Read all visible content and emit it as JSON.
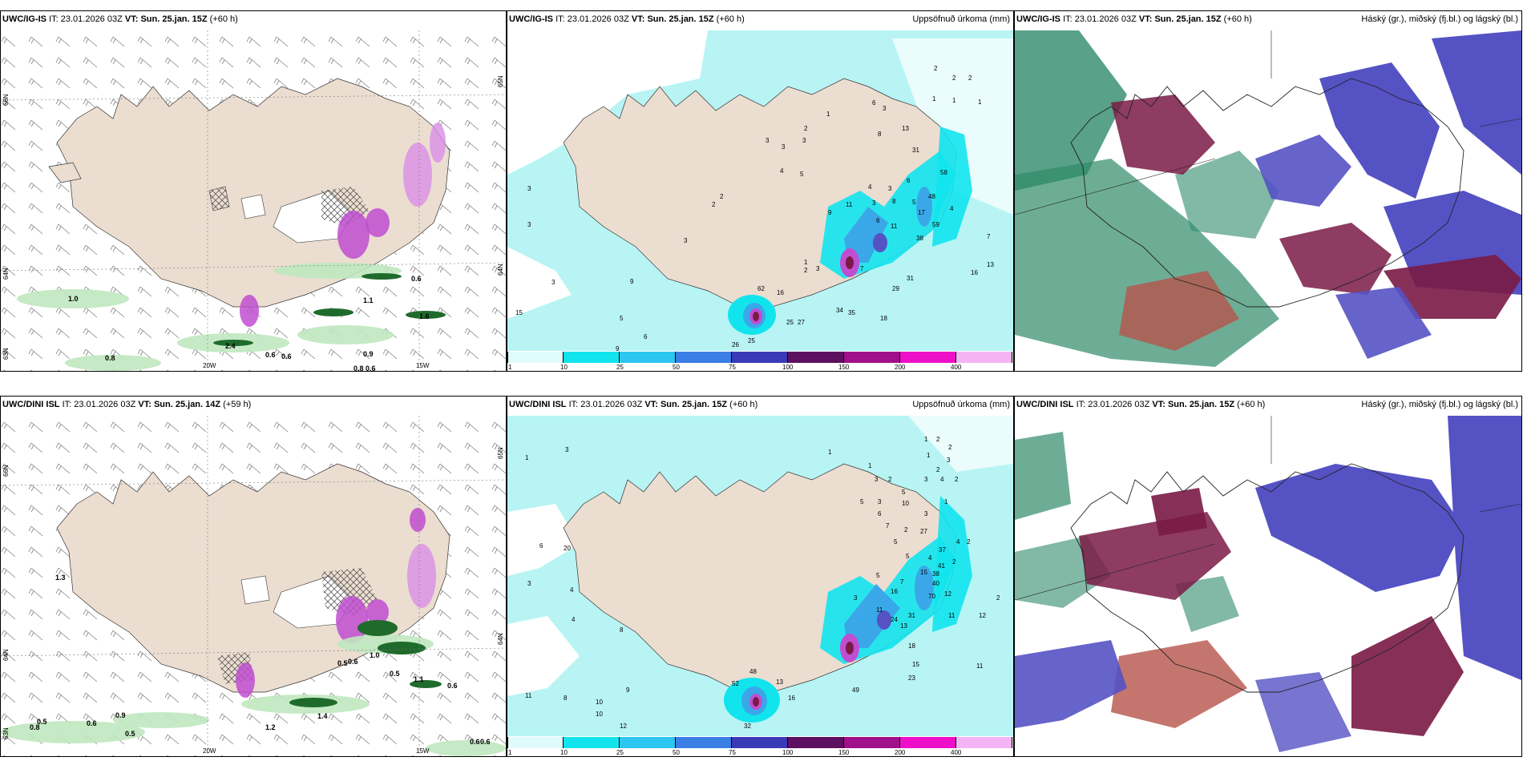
{
  "colors": {
    "land": "#ebddd0",
    "cyan_light": "#b8f4f4",
    "cyan": "#12e4ee",
    "blue_mid": "#3aa8e8",
    "magenta": "#c04ed0",
    "green_light": "#bfe8bf",
    "green_dark": "#1f6b2c",
    "maroon": "#7a1a45",
    "violet": "#5552c4",
    "teal": "#2f8a6a"
  },
  "panels": [
    {
      "id": "top-left",
      "model": "UWC/IG-IS",
      "it_label": "IT:",
      "it_value": "23.01.2026 03Z",
      "vt_label": "VT:",
      "vt_value": "Sun. 25.jan. 15Z",
      "lead": "(+60 h)",
      "right_title": "",
      "numbers": [
        "1.0",
        "2.4",
        "0.6",
        "0.6",
        "0.8",
        "0.9",
        "0.8",
        "0.6",
        "1.1",
        "1.6",
        "0.6"
      ],
      "axis_bottom": [
        "20W",
        "15W"
      ],
      "axis_left": [
        "66N",
        "64N",
        "63N"
      ],
      "axis_right": [
        "65N",
        "64N"
      ]
    },
    {
      "id": "top-mid",
      "model": "UWC/IG-IS",
      "it_label": "IT:",
      "it_value": "23.01.2026 03Z",
      "vt_label": "VT:",
      "vt_value": "Sun. 25.jan. 15Z",
      "lead": "(+60 h)",
      "right_title": "Uppsöfnuð úrkoma (mm)",
      "numbers": [
        "2",
        "2",
        "2",
        "1",
        "1",
        "1",
        "6",
        "3",
        "8",
        "13",
        "1",
        "2",
        "3",
        "3",
        "3",
        "31",
        "4",
        "5",
        "6",
        "3",
        "4",
        "58",
        "11",
        "3",
        "8",
        "5",
        "48",
        "4",
        "17",
        "59",
        "11",
        "38",
        "9",
        "6",
        "7",
        "16",
        "13",
        "2",
        "3",
        "2",
        "1",
        "2",
        "3",
        "62",
        "16",
        "9",
        "15",
        "5",
        "25",
        "27",
        "34",
        "35",
        "18",
        "29",
        "31",
        "26",
        "25",
        "7",
        "6",
        "9",
        "3",
        "3",
        "3"
      ],
      "colorbar_ticks": [
        "1",
        "10",
        "25",
        "50",
        "75",
        "100",
        "150",
        "200",
        "400"
      ]
    },
    {
      "id": "top-right",
      "model": "UWC/IG-IS",
      "it_label": "IT:",
      "it_value": "23.01.2026 03Z",
      "vt_label": "VT:",
      "vt_value": "Sun. 25.jan. 15Z",
      "lead": "(+60 h)",
      "right_title": "Háský (gr.), miðský (fj.bl.) og lágský (bl.)"
    },
    {
      "id": "bottom-left",
      "model": "UWC/DINI ISL",
      "it_label": "IT:",
      "it_value": "23.01.2026 03Z",
      "vt_label": "VT:",
      "vt_value": "Sun. 25.jan. 14Z",
      "lead": "(+59 h)",
      "right_title": "",
      "numbers": [
        "1.3",
        "0.5",
        "0.8",
        "0.9",
        "0.6",
        "0.5",
        "1.2",
        "1.4",
        "0.5",
        "1.0",
        "0.6",
        "0.5",
        "1.1",
        "0.6",
        "0.6",
        "0.6"
      ],
      "axis_bottom": [
        "20W",
        "15W"
      ],
      "axis_left": [
        "66N",
        "64N",
        "63N"
      ],
      "axis_right": [
        "65N",
        "64N"
      ]
    },
    {
      "id": "bottom-mid",
      "model": "UWC/DINI ISL",
      "it_label": "IT:",
      "it_value": "23.01.2026 03Z",
      "vt_label": "VT:",
      "vt_value": "Sun. 25.jan. 15Z",
      "lead": "(+60 h)",
      "right_title": "Uppsöfnuð úrkoma (mm)",
      "numbers": [
        "1",
        "2",
        "2",
        "1",
        "3",
        "2",
        "1",
        "3",
        "2",
        "3",
        "4",
        "2",
        "1",
        "5",
        "5",
        "1",
        "3",
        "6",
        "7",
        "3",
        "10",
        "27",
        "2",
        "5",
        "37",
        "4",
        "2",
        "5",
        "4",
        "2",
        "41",
        "7",
        "5",
        "15",
        "38",
        "40",
        "16",
        "70",
        "12",
        "3",
        "11",
        "2",
        "13",
        "24",
        "31",
        "11",
        "12",
        "18",
        "15",
        "23",
        "11",
        "49",
        "48",
        "13",
        "16",
        "52",
        "32",
        "12",
        "10",
        "8",
        "11",
        "6",
        "3",
        "20",
        "4",
        "8",
        "4",
        "3",
        "1",
        "9",
        "10"
      ],
      "colorbar_ticks": [
        "1",
        "10",
        "25",
        "50",
        "75",
        "100",
        "150",
        "200",
        "400"
      ]
    },
    {
      "id": "bottom-right",
      "model": "UWC/DINI ISL",
      "it_label": "IT:",
      "it_value": "23.01.2026 03Z",
      "vt_label": "VT:",
      "vt_value": "Sun. 25.jan. 15Z",
      "lead": "(+60 h)",
      "right_title": "Háský (gr.), miðský (fj.bl.) og lágský (bl.)"
    }
  ]
}
